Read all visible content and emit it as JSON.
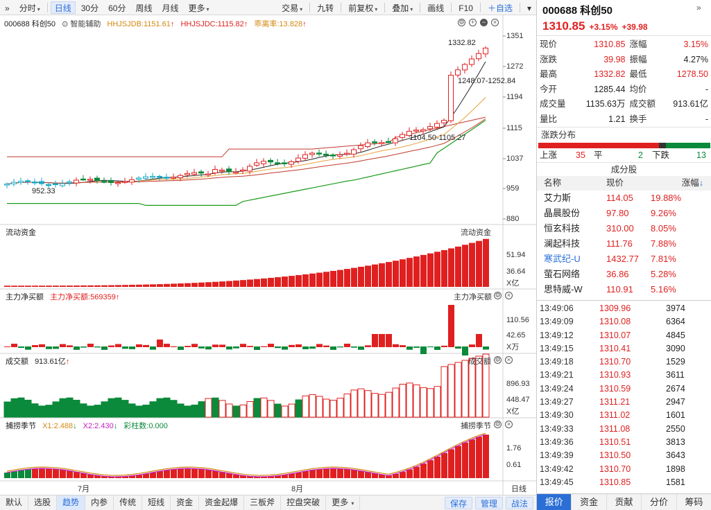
{
  "toolbar": {
    "left_items": [
      {
        "label": "分时",
        "caret": true,
        "active": false
      },
      {
        "label": "日线",
        "caret": false,
        "active": true
      },
      {
        "label": "30分",
        "caret": false,
        "active": false
      },
      {
        "label": "60分",
        "caret": false,
        "active": false
      },
      {
        "label": "周线",
        "caret": false,
        "active": false
      },
      {
        "label": "月线",
        "caret": false,
        "active": false
      },
      {
        "label": "更多",
        "caret": true,
        "active": false
      }
    ],
    "right_items": [
      {
        "label": "交易",
        "caret": true
      },
      {
        "label": "九转",
        "caret": false
      },
      {
        "label": "前复权",
        "caret": true
      },
      {
        "label": "叠加",
        "caret": true
      },
      {
        "label": "画线",
        "caret": false
      },
      {
        "label": "F10",
        "caret": false
      },
      {
        "label": "＋自选",
        "caret": false
      }
    ]
  },
  "kline": {
    "code_name": "000688 科创50",
    "assist": "智能辅助",
    "ind1": "HHJSJDB:1151.61",
    "ind2": "HHJSJDC:1115.82",
    "ind3": "乖离率:13.828",
    "ticks": [
      "1351",
      "1272",
      "1194",
      "1115",
      "1037",
      "959",
      "880"
    ],
    "annot_high": "1332.82",
    "annot_range1": "1248.07-1252.84",
    "annot_range2": "1104.50-1105.27",
    "annot_low": "952.33",
    "colors": {
      "up": "#e02020",
      "down": "#0a8a3a",
      "ma1": "#222222",
      "ma2": "#e6a23c",
      "ma3": "#c0392b",
      "upper": "#c0392b",
      "lower": "#1a9a1a"
    }
  },
  "flow_panel": {
    "title": "流动资金",
    "right_title": "流动资金",
    "ticks": [
      "51.94",
      "36.64"
    ],
    "unit": "X亿"
  },
  "main_panel": {
    "title": "主力净买额",
    "ind": "主力净买额:569359",
    "right_title": "主力净买额",
    "ticks": [
      "110.56",
      "42.65"
    ],
    "unit": "X万"
  },
  "vol_panel": {
    "title": "成交额",
    "ind": "913.61亿",
    "right_title": "成交额",
    "ticks": [
      "896.93",
      "448.47"
    ],
    "unit": "X亿"
  },
  "season_panel": {
    "title": "捕捞季节",
    "x1": "X1:2.488",
    "x2": "X2:2.430",
    "bars": "彩柱数:0.000",
    "right_title": "捕捞季节",
    "ticks": [
      "1.76",
      "0.61"
    ]
  },
  "x_axis": {
    "labels": [
      "7月",
      "8月"
    ],
    "right": "日线"
  },
  "bottom_tabs": {
    "items": [
      "默认",
      "选股",
      "趋势",
      "内参",
      "传统",
      "短线",
      "资金",
      "资金起爆",
      "三板斧",
      "控盘突破",
      "更多"
    ],
    "active": "趋势",
    "save": "保存",
    "manage": "管理",
    "strategy": "战法"
  },
  "side": {
    "title": "000688 科创50",
    "price": "1310.85",
    "pct": "+3.15%",
    "chg": "+39.98",
    "stats": [
      [
        "现价",
        "1310.85",
        "red",
        "涨幅",
        "3.15%",
        "red"
      ],
      [
        "涨跌",
        "39.98",
        "red",
        "振幅",
        "4.27%",
        "dark"
      ],
      [
        "最高",
        "1332.82",
        "red",
        "最低",
        "1278.50",
        "red"
      ],
      [
        "今开",
        "1285.44",
        "dark",
        "均价",
        "-",
        "dark"
      ],
      [
        "成交量",
        "1135.63万",
        "dark",
        "成交额",
        "913.61亿",
        "dark"
      ],
      [
        "量比",
        "1.21",
        "dark",
        "换手",
        "-",
        "dark"
      ]
    ],
    "dist_title": "涨跌分布",
    "dist": {
      "up_label": "上涨",
      "up": "35",
      "flat_label": "平",
      "flat": "2",
      "down_label": "下跌",
      "down": "13"
    },
    "const_title": "成分股",
    "const_head": [
      "名称",
      "现价",
      "涨幅"
    ],
    "constituents": [
      [
        "艾力斯",
        "114.05",
        "19.88%"
      ],
      [
        "晶晨股份",
        "97.80",
        "9.26%"
      ],
      [
        "恒玄科技",
        "310.00",
        "8.05%"
      ],
      [
        "澜起科技",
        "111.76",
        "7.88%"
      ],
      [
        "寒武纪-U",
        "1432.77",
        "7.81%"
      ],
      [
        "萤石网络",
        "36.86",
        "5.28%"
      ],
      [
        "思特威-W",
        "110.91",
        "5.16%"
      ]
    ],
    "ticks": [
      [
        "13:49:06",
        "1309.96",
        "3974"
      ],
      [
        "13:49:09",
        "1310.08",
        "6364"
      ],
      [
        "13:49:12",
        "1310.07",
        "4845"
      ],
      [
        "13:49:15",
        "1310.41",
        "3090"
      ],
      [
        "13:49:18",
        "1310.70",
        "1529"
      ],
      [
        "13:49:21",
        "1310.93",
        "3611"
      ],
      [
        "13:49:24",
        "1310.59",
        "2674"
      ],
      [
        "13:49:27",
        "1311.21",
        "2947"
      ],
      [
        "13:49:30",
        "1311.02",
        "1601"
      ],
      [
        "13:49:33",
        "1311.08",
        "2550"
      ],
      [
        "13:49:36",
        "1310.51",
        "3813"
      ],
      [
        "13:49:39",
        "1310.50",
        "3643"
      ],
      [
        "13:49:42",
        "1310.70",
        "1898"
      ],
      [
        "13:49:45",
        "1310.85",
        "1581"
      ]
    ],
    "tabs": [
      "报价",
      "资金",
      "贡献",
      "分价",
      "筹码"
    ],
    "active_tab": "报价"
  }
}
